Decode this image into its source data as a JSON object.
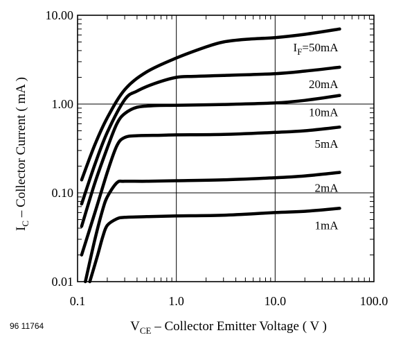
{
  "figure_id": "96 11764",
  "chart_data": {
    "type": "line",
    "title": "",
    "xlabel": {
      "main": "V",
      "sub": "CE",
      "rest": " – Collector Emitter Voltage ( V )"
    },
    "ylabel": {
      "main": "I",
      "sub": "C",
      "rest": " – Collector Current ( mA )"
    },
    "xscale": "log",
    "yscale": "log",
    "xlim": [
      0.1,
      100.0
    ],
    "ylim": [
      0.01,
      10.0
    ],
    "x_ticks": [
      {
        "value": 0.1,
        "label": "0.1"
      },
      {
        "value": 1.0,
        "label": "1.0"
      },
      {
        "value": 10.0,
        "label": "10.0"
      },
      {
        "value": 100.0,
        "label": "100.0"
      }
    ],
    "y_ticks": [
      {
        "value": 0.01,
        "label": "0.01"
      },
      {
        "value": 0.1,
        "label": "0.10"
      },
      {
        "value": 1.0,
        "label": "1.00"
      },
      {
        "value": 10.0,
        "label": "10.00"
      }
    ],
    "grid": true,
    "series": [
      {
        "name": "50mA",
        "label_main": "I",
        "label_sub": "F",
        "label_rest": "=50mA",
        "x": [
          0.11,
          0.15,
          0.2,
          0.3,
          0.5,
          1.0,
          2.0,
          3.0,
          5.0,
          10.0,
          20.0,
          45.0
        ],
        "y": [
          0.14,
          0.35,
          0.7,
          1.45,
          2.3,
          3.3,
          4.4,
          5.0,
          5.35,
          5.6,
          6.1,
          7.0
        ]
      },
      {
        "name": "20mA",
        "label_main": "",
        "label_sub": "",
        "label_rest": "20mA",
        "x": [
          0.11,
          0.15,
          0.2,
          0.3,
          0.4,
          0.6,
          1.0,
          1.5,
          3.0,
          10.0,
          20.0,
          45.0
        ],
        "y": [
          0.075,
          0.21,
          0.48,
          1.12,
          1.4,
          1.7,
          2.0,
          2.05,
          2.1,
          2.2,
          2.35,
          2.6
        ]
      },
      {
        "name": "10mA",
        "label_main": "",
        "label_sub": "",
        "label_rest": "10mA",
        "x": [
          0.11,
          0.15,
          0.2,
          0.25,
          0.3,
          0.4,
          0.6,
          1.0,
          3.0,
          10.0,
          20.0,
          45.0
        ],
        "y": [
          0.042,
          0.13,
          0.32,
          0.6,
          0.78,
          0.92,
          0.96,
          0.97,
          0.99,
          1.03,
          1.1,
          1.25
        ]
      },
      {
        "name": "5mA",
        "label_main": "",
        "label_sub": "",
        "label_rest": "5mA",
        "x": [
          0.11,
          0.15,
          0.2,
          0.25,
          0.3,
          0.4,
          0.7,
          1.0,
          3.0,
          10.0,
          20.0,
          45.0
        ],
        "y": [
          0.02,
          0.06,
          0.17,
          0.34,
          0.42,
          0.44,
          0.445,
          0.45,
          0.455,
          0.48,
          0.5,
          0.55
        ]
      },
      {
        "name": "2mA",
        "label_main": "",
        "label_sub": "",
        "label_rest": "2mA",
        "x": [
          0.12,
          0.15,
          0.18,
          0.2,
          0.25,
          0.3,
          0.5,
          1.0,
          3.0,
          10.0,
          20.0,
          45.0
        ],
        "y": [
          0.01,
          0.03,
          0.065,
          0.09,
          0.13,
          0.135,
          0.135,
          0.137,
          0.14,
          0.148,
          0.155,
          0.17
        ]
      },
      {
        "name": "1mA",
        "label_main": "",
        "label_sub": "",
        "label_rest": "1mA",
        "x": [
          0.133,
          0.16,
          0.18,
          0.2,
          0.25,
          0.3,
          0.5,
          1.0,
          3.0,
          10.0,
          20.0,
          45.0
        ],
        "y": [
          0.01,
          0.02,
          0.032,
          0.043,
          0.051,
          0.053,
          0.054,
          0.055,
          0.056,
          0.06,
          0.062,
          0.067
        ]
      }
    ]
  }
}
